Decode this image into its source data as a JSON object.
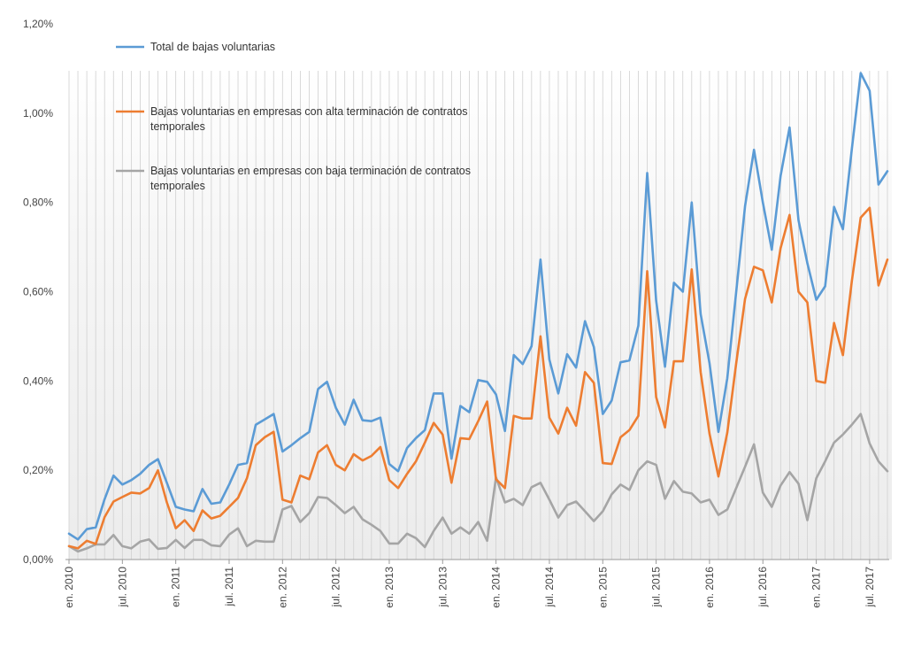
{
  "chart_data": {
    "type": "line",
    "title": "",
    "xlabel": "",
    "ylabel": "",
    "ylim": [
      0,
      1.2
    ],
    "y_ticks": [
      "0,00%",
      "0,20%",
      "0,40%",
      "0,60%",
      "0,80%",
      "1,00%",
      "1,20%"
    ],
    "x_ticks": [
      {
        "index": 0,
        "label": "en. 2010"
      },
      {
        "index": 6,
        "label": "jul. 2010"
      },
      {
        "index": 12,
        "label": "en. 2011"
      },
      {
        "index": 18,
        "label": "jul. 2011"
      },
      {
        "index": 24,
        "label": "en. 2012"
      },
      {
        "index": 30,
        "label": "jul. 2012"
      },
      {
        "index": 36,
        "label": "en. 2013"
      },
      {
        "index": 42,
        "label": "jul. 2013"
      },
      {
        "index": 48,
        "label": "en. 2014"
      },
      {
        "index": 54,
        "label": "jul. 2014"
      },
      {
        "index": 60,
        "label": "en. 2015"
      },
      {
        "index": 66,
        "label": "jul. 2015"
      },
      {
        "index": 72,
        "label": "en. 2016"
      },
      {
        "index": 78,
        "label": "jul. 2016"
      },
      {
        "index": 84,
        "label": "en. 2017"
      },
      {
        "index": 90,
        "label": "jul. 2017"
      }
    ],
    "grid": "vertical",
    "legend_placement": "top-left",
    "colors": {
      "total": "#5b9bd5",
      "alta": "#ed7d31",
      "baja": "#a5a5a5"
    },
    "series": [
      {
        "name": "Total de bajas voluntarias",
        "color": "#5b9bd5",
        "values": [
          0.058,
          0.045,
          0.068,
          0.072,
          0.135,
          0.188,
          0.168,
          0.178,
          0.192,
          0.212,
          0.225,
          0.172,
          0.118,
          0.112,
          0.108,
          0.158,
          0.125,
          0.128,
          0.168,
          0.212,
          0.216,
          0.302,
          0.314,
          0.326,
          0.242,
          0.256,
          0.272,
          0.286,
          0.382,
          0.398,
          0.34,
          0.302,
          0.358,
          0.312,
          0.31,
          0.318,
          0.214,
          0.198,
          0.25,
          0.272,
          0.29,
          0.372,
          0.372,
          0.226,
          0.344,
          0.33,
          0.402,
          0.398,
          0.37,
          0.288,
          0.458,
          0.438,
          0.478,
          0.672,
          0.448,
          0.372,
          0.46,
          0.43,
          0.534,
          0.476,
          0.326,
          0.356,
          0.442,
          0.446,
          0.524,
          0.866,
          0.58,
          0.432,
          0.62,
          0.6,
          0.8,
          0.55,
          0.44,
          0.286,
          0.406,
          0.6,
          0.792,
          0.918,
          0.8,
          0.694,
          0.86,
          0.968,
          0.76,
          0.664,
          0.582,
          0.612,
          0.79,
          0.74,
          0.92,
          1.09,
          1.05,
          0.84,
          0.87
        ]
      },
      {
        "name": "Bajas voluntarias en empresas con alta terminación de contratos temporales",
        "color": "#ed7d31",
        "values": [
          0.03,
          0.025,
          0.042,
          0.035,
          0.095,
          0.13,
          0.14,
          0.15,
          0.148,
          0.16,
          0.2,
          0.128,
          0.07,
          0.088,
          0.064,
          0.11,
          0.092,
          0.098,
          0.118,
          0.138,
          0.182,
          0.256,
          0.274,
          0.286,
          0.134,
          0.128,
          0.188,
          0.18,
          0.24,
          0.256,
          0.212,
          0.2,
          0.236,
          0.222,
          0.232,
          0.252,
          0.178,
          0.16,
          0.192,
          0.22,
          0.262,
          0.306,
          0.28,
          0.172,
          0.272,
          0.27,
          0.31,
          0.354,
          0.18,
          0.16,
          0.322,
          0.316,
          0.316,
          0.5,
          0.318,
          0.282,
          0.34,
          0.3,
          0.42,
          0.396,
          0.216,
          0.214,
          0.274,
          0.29,
          0.322,
          0.646,
          0.364,
          0.296,
          0.444,
          0.444,
          0.65,
          0.42,
          0.282,
          0.186,
          0.284,
          0.44,
          0.584,
          0.656,
          0.648,
          0.576,
          0.698,
          0.772,
          0.6,
          0.576,
          0.4,
          0.396,
          0.53,
          0.458,
          0.624,
          0.766,
          0.788,
          0.614,
          0.672
        ]
      },
      {
        "name": "Bajas voluntarias en empresas con baja terminación de contratos temporales",
        "color": "#a5a5a5",
        "values": [
          0.03,
          0.018,
          0.025,
          0.034,
          0.034,
          0.055,
          0.03,
          0.025,
          0.04,
          0.045,
          0.024,
          0.026,
          0.044,
          0.026,
          0.044,
          0.044,
          0.032,
          0.03,
          0.056,
          0.07,
          0.03,
          0.042,
          0.04,
          0.04,
          0.112,
          0.12,
          0.084,
          0.104,
          0.14,
          0.138,
          0.122,
          0.104,
          0.118,
          0.09,
          0.078,
          0.064,
          0.036,
          0.036,
          0.058,
          0.048,
          0.028,
          0.064,
          0.094,
          0.058,
          0.072,
          0.058,
          0.084,
          0.042,
          0.184,
          0.128,
          0.136,
          0.122,
          0.162,
          0.172,
          0.134,
          0.094,
          0.122,
          0.13,
          0.108,
          0.086,
          0.108,
          0.146,
          0.168,
          0.156,
          0.2,
          0.22,
          0.212,
          0.136,
          0.176,
          0.152,
          0.148,
          0.128,
          0.134,
          0.1,
          0.112,
          0.16,
          0.208,
          0.258,
          0.15,
          0.118,
          0.166,
          0.196,
          0.17,
          0.088,
          0.182,
          0.22,
          0.262,
          0.28,
          0.302,
          0.326,
          0.26,
          0.22,
          0.198
        ]
      }
    ]
  },
  "legend": [
    {
      "lines": [
        "Total de bajas voluntarias"
      ]
    },
    {
      "lines": [
        "Bajas voluntarias en empresas con alta terminación de contratos",
        "temporales"
      ]
    },
    {
      "lines": [
        "Bajas voluntarias en empresas con baja terminación de contratos",
        "temporales"
      ]
    }
  ]
}
